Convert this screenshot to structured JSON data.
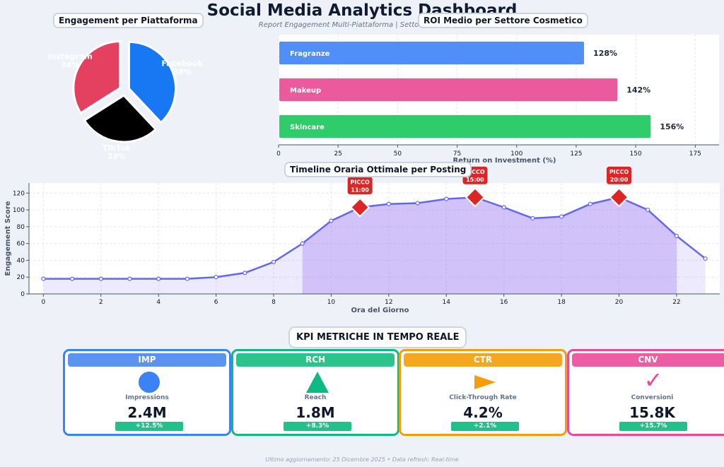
{
  "header": {
    "title": "Social Media Analytics Dashboard",
    "subtitle": "Report Engagement Multi-Piattaforma | Settore Cosmetico"
  },
  "chart_data": [
    {
      "type": "pie",
      "title": "Engagement per Piattaforma",
      "slices": [
        {
          "label": "Facebook",
          "value": 38,
          "display": "38%",
          "color": "#1877f2"
        },
        {
          "label": "TikTok",
          "value": 28,
          "display": "28%",
          "color": "#000000"
        },
        {
          "label": "Instagram",
          "value": 34,
          "display": "34%",
          "color": "#e4405f"
        }
      ]
    },
    {
      "type": "bar",
      "orientation": "horizontal",
      "title": "ROI Medio per Settore Cosmetico",
      "xlabel": "Return on Investment (%)",
      "xlim": [
        0,
        185
      ],
      "xticks": [
        0,
        25,
        50,
        75,
        100,
        125,
        150,
        175
      ],
      "categories": [
        "Fragranze",
        "Makeup",
        "Skincare"
      ],
      "values": [
        128,
        142,
        156
      ],
      "value_labels": [
        "128%",
        "142%",
        "156%"
      ],
      "colors": [
        "#4f8ff7",
        "#ec5a9e",
        "#2ecc6a"
      ]
    },
    {
      "type": "area",
      "title": "Timeline Oraria Ottimale per Posting",
      "xlabel": "Ora del Giorno",
      "ylabel": "Engagement Score",
      "xlim": [
        -0.5,
        23.5
      ],
      "ylim": [
        0,
        132
      ],
      "xticks": [
        0,
        2,
        4,
        6,
        8,
        10,
        12,
        14,
        16,
        18,
        20,
        22
      ],
      "yticks": [
        0,
        20,
        40,
        60,
        80,
        100,
        120
      ],
      "grid": true,
      "x": [
        0,
        1,
        2,
        3,
        4,
        5,
        6,
        7,
        8,
        9,
        10,
        11,
        12,
        13,
        14,
        15,
        16,
        17,
        18,
        19,
        20,
        21,
        22,
        23
      ],
      "y": [
        18,
        18,
        18,
        18,
        18,
        18,
        20,
        25,
        38,
        60,
        87,
        103,
        107,
        108,
        113,
        115,
        103,
        90,
        92,
        107,
        115,
        100,
        69,
        42
      ],
      "highlight_range": [
        9,
        22
      ],
      "peaks": [
        {
          "x": 11,
          "y": 103,
          "label_top": "PICCO",
          "label_bottom": "11:00"
        },
        {
          "x": 15,
          "y": 115,
          "label_top": "PICCO",
          "label_bottom": "15:00"
        },
        {
          "x": 20,
          "y": 115,
          "label_top": "PICCO",
          "label_bottom": "20:00"
        }
      ]
    }
  ],
  "kpi": {
    "title": "KPI METRICHE IN TEMPO REALE",
    "cards": [
      {
        "code": "IMP",
        "name": "Impressions",
        "value": "2.4M",
        "delta": "+12.5%",
        "color": "#3b82f6",
        "head_color": "#5b93f2",
        "icon": "circle-icon"
      },
      {
        "code": "RCH",
        "name": "Reach",
        "value": "1.8M",
        "delta": "+8.3%",
        "color": "#10b981",
        "head_color": "#2bc48c",
        "icon": "triangle-icon"
      },
      {
        "code": "CTR",
        "name": "Click-Through Rate",
        "value": "4.2%",
        "delta": "+2.1%",
        "color": "#f59e0b",
        "head_color": "#f5a623",
        "icon": "play-arrow-icon"
      },
      {
        "code": "CNV",
        "name": "Conversioni",
        "value": "15.8K",
        "delta": "+15.7%",
        "color": "#ec4899",
        "head_color": "#ef5ca3",
        "icon": "checkmark-icon",
        "glyph": "✓"
      }
    ]
  },
  "footer": "Ultimo aggiornamento: 25 Dicembre 2025 • Data refresh: Real-time"
}
